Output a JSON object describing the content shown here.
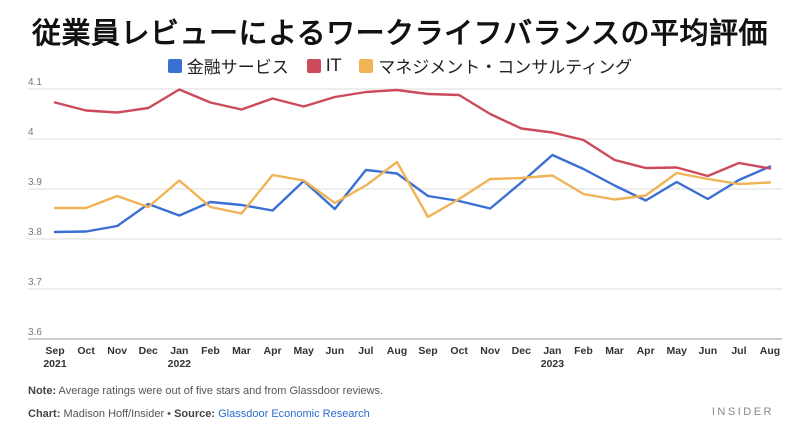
{
  "header": {
    "title": "従業員レビューによるワークライフバランスの平均評価"
  },
  "legend": {
    "items": [
      {
        "label": "金融サービス",
        "color": "#3b6fd4"
      },
      {
        "label": "IT",
        "color": "#cc4a5c"
      },
      {
        "label": "マネジメント・コンサルティング",
        "color": "#f0b356"
      }
    ]
  },
  "footer": {
    "note_label": "Note:",
    "note_text": " Average ratings were out of five stars and from Glassdoor reviews.",
    "chart_label": "Chart:",
    "chart_text": " Madison Hoff/Insider • ",
    "source_label": "Source:",
    "source_text": "Glassdoor Economic Research",
    "brand": "INSIDER"
  },
  "chart_data": {
    "type": "line",
    "x": [
      "Sep",
      "Oct",
      "Nov",
      "Dec",
      "Jan",
      "Feb",
      "Mar",
      "Apr",
      "May",
      "Jun",
      "Jul",
      "Aug",
      "Sep",
      "Oct",
      "Nov",
      "Dec",
      "Jan",
      "Feb",
      "Mar",
      "Apr",
      "May",
      "Jun",
      "Jul",
      "Aug"
    ],
    "x_years": {
      "0": "2021",
      "4": "2022",
      "16": "2023"
    },
    "ylim": [
      3.6,
      4.1
    ],
    "yticks": [
      "4.1",
      "4",
      "3.9",
      "3.8",
      "3.7",
      "3.6"
    ],
    "grid": true,
    "series": [
      {
        "name": "金融サービス",
        "color": "#3b6fd4",
        "values": [
          3.814,
          3.815,
          3.826,
          3.87,
          3.847,
          3.874,
          3.868,
          3.857,
          3.916,
          3.86,
          3.938,
          3.931,
          3.886,
          3.876,
          3.861,
          3.913,
          3.968,
          3.94,
          3.907,
          3.877,
          3.914,
          3.88,
          3.918,
          3.945
        ]
      },
      {
        "name": "IT",
        "color": "#cc4a5c",
        "values": [
          4.073,
          4.057,
          4.053,
          4.062,
          4.099,
          4.073,
          4.059,
          4.081,
          4.065,
          4.084,
          4.094,
          4.098,
          4.09,
          4.088,
          4.05,
          4.021,
          4.013,
          3.998,
          3.958,
          3.942,
          3.943,
          3.926,
          3.952,
          3.941
        ]
      },
      {
        "name": "マネジメント・コンサルティング",
        "color": "#f0b356",
        "values": [
          3.862,
          3.862,
          3.886,
          3.864,
          3.917,
          3.864,
          3.851,
          3.928,
          3.917,
          3.872,
          3.907,
          3.954,
          3.844,
          3.88,
          3.92,
          3.922,
          3.927,
          3.89,
          3.879,
          3.887,
          3.932,
          3.92,
          3.91,
          3.913
        ]
      }
    ]
  }
}
